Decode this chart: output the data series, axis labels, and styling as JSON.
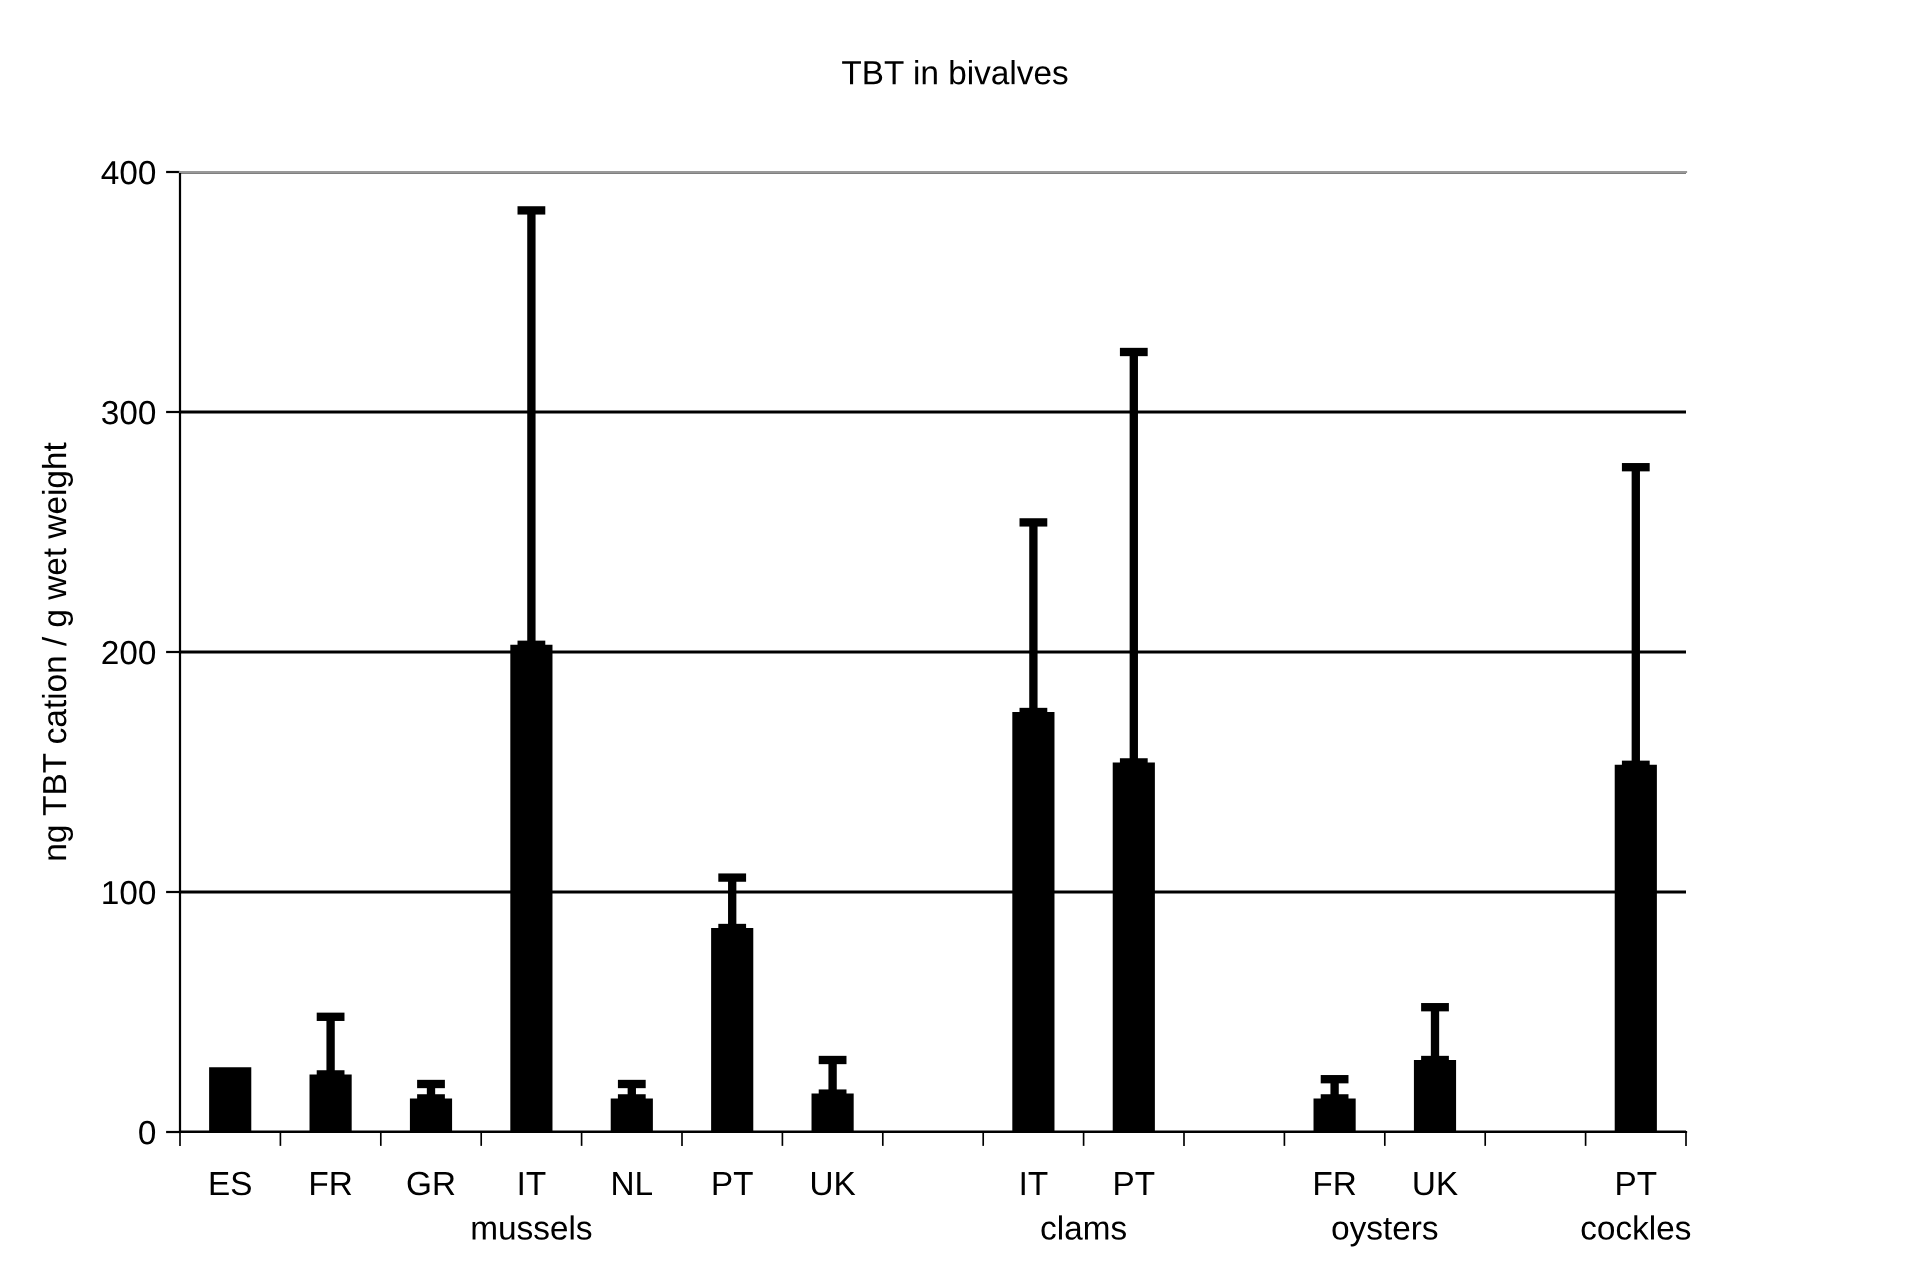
{
  "chart_data": {
    "type": "bar",
    "title": "TBT in bivalves",
    "ylabel": "ng TBT cation / g wet weight",
    "categories": [
      "ES",
      "FR",
      "GR",
      "IT",
      "NL",
      "PT",
      "UK",
      null,
      "IT",
      "PT",
      null,
      "FR",
      "UK",
      null,
      "PT"
    ],
    "values": [
      27,
      24,
      14,
      203,
      14,
      85,
      16,
      null,
      175,
      154,
      null,
      14,
      30,
      null,
      153
    ],
    "errors": [
      null,
      [
        24,
        48
      ],
      [
        14,
        20
      ],
      [
        203,
        384
      ],
      [
        14,
        20
      ],
      [
        85,
        106
      ],
      [
        16,
        30
      ],
      null,
      [
        175,
        254
      ],
      [
        154,
        325
      ],
      null,
      [
        14,
        22
      ],
      [
        30,
        52
      ],
      null,
      [
        153,
        277
      ]
    ],
    "color": "#000000",
    "ylim": [
      0,
      400
    ],
    "yticks": [
      0,
      100,
      200,
      300,
      400
    ],
    "grid": "y",
    "annotations": [
      "mussels",
      "clams",
      "oysters",
      "cockles"
    ]
  }
}
